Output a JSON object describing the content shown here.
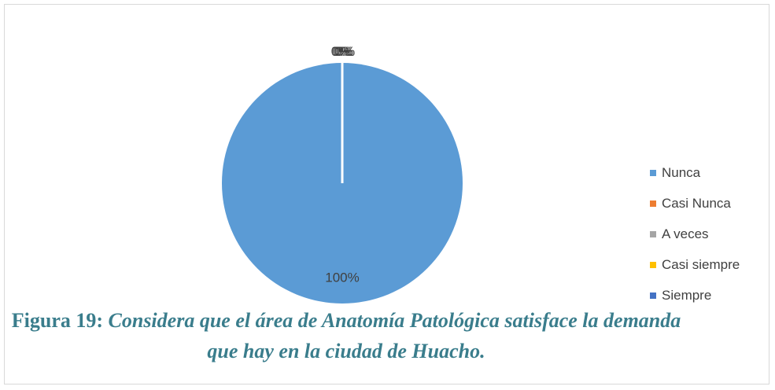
{
  "caption": {
    "label": "Figura 19:",
    "text": " Considera que el área de Anatomía Patológica satisface la demanda que hay en la ciudad de Huacho."
  },
  "chart_data": {
    "type": "pie",
    "categories": [
      "Nunca",
      "Casi Nunca",
      "A veces",
      "Casi siempre",
      "Siempre"
    ],
    "values": [
      100,
      0,
      0,
      0,
      0
    ],
    "data_labels": [
      "100%",
      "0%",
      "0%",
      "0%",
      "0%"
    ],
    "colors": [
      "#5b9bd5",
      "#ed7d31",
      "#a5a5a5",
      "#ffc000",
      "#4472c4"
    ],
    "legend_position": "right"
  }
}
